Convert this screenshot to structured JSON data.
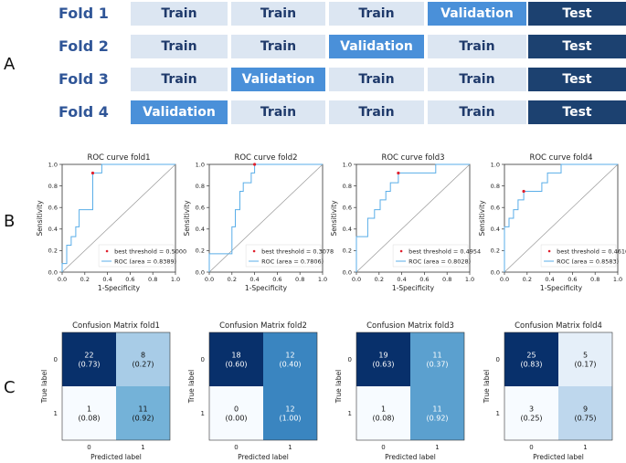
{
  "panel_letters": [
    "A",
    "B",
    "C"
  ],
  "folds": [
    {
      "label": "Fold 1",
      "cells": [
        "Train",
        "Train",
        "Train",
        "Validation",
        "Test"
      ]
    },
    {
      "label": "Fold 2",
      "cells": [
        "Train",
        "Train",
        "Validation",
        "Train",
        "Test"
      ]
    },
    {
      "label": "Fold 3",
      "cells": [
        "Train",
        "Validation",
        "Train",
        "Train",
        "Test"
      ]
    },
    {
      "label": "Fold 4",
      "cells": [
        "Validation",
        "Train",
        "Train",
        "Train",
        "Test"
      ]
    }
  ],
  "roc": {
    "xlabel": "1-Specificity",
    "ylabel": "Sensitivity",
    "ticks": [
      "0.0",
      "0.2",
      "0.4",
      "0.6",
      "0.8",
      "1.0"
    ],
    "curve_color": "#5aaee8",
    "diag_color": "#999999",
    "point_color": "#e0202e"
  },
  "confusion": {
    "xlabel": "Predicted label",
    "ylabel": "True label",
    "tick_labels": [
      "0",
      "1"
    ]
  },
  "chart_data": [
    {
      "type": "line",
      "title": "ROC curve fold1",
      "xlabel": "1-Specificity",
      "ylabel": "Sensitivity",
      "xlim": [
        0,
        1
      ],
      "ylim": [
        0,
        1
      ],
      "x": [
        0,
        0,
        0.04,
        0.04,
        0.08,
        0.08,
        0.12,
        0.12,
        0.15,
        0.15,
        0.27,
        0.27,
        0.35,
        0.35,
        0.5,
        0.5,
        1.0
      ],
      "y": [
        0,
        0.08,
        0.08,
        0.25,
        0.25,
        0.33,
        0.33,
        0.42,
        0.42,
        0.58,
        0.58,
        0.92,
        0.92,
        1.0,
        1.0,
        1.0,
        1.0
      ],
      "best_point": [
        0.27,
        0.92
      ],
      "legend": [
        "best threshold = 0.5000",
        "ROC (area = 0.8389)"
      ]
    },
    {
      "type": "line",
      "title": "ROC curve fold2",
      "xlabel": "1-Specificity",
      "ylabel": "Sensitivity",
      "xlim": [
        0,
        1
      ],
      "ylim": [
        0,
        1
      ],
      "x": [
        0,
        0,
        0.2,
        0.2,
        0.23,
        0.23,
        0.27,
        0.27,
        0.3,
        0.3,
        0.37,
        0.37,
        0.4,
        0.4,
        1.0
      ],
      "y": [
        0,
        0.17,
        0.17,
        0.42,
        0.42,
        0.58,
        0.58,
        0.75,
        0.75,
        0.83,
        0.83,
        0.92,
        0.92,
        1.0,
        1.0
      ],
      "best_point": [
        0.4,
        1.0
      ],
      "legend": [
        "best threshold = 0.3078",
        "ROC (area = 0.7806)"
      ]
    },
    {
      "type": "line",
      "title": "ROC curve fold3",
      "xlabel": "1-Specificity",
      "ylabel": "Sensitivity",
      "xlim": [
        0,
        1
      ],
      "ylim": [
        0,
        1
      ],
      "x": [
        0,
        0,
        0.1,
        0.1,
        0.16,
        0.16,
        0.21,
        0.21,
        0.26,
        0.26,
        0.3,
        0.3,
        0.37,
        0.37,
        0.7,
        0.7,
        1.0
      ],
      "y": [
        0,
        0.33,
        0.33,
        0.5,
        0.5,
        0.58,
        0.58,
        0.67,
        0.67,
        0.75,
        0.75,
        0.83,
        0.83,
        0.92,
        0.92,
        1.0,
        1.0
      ],
      "best_point": [
        0.37,
        0.92
      ],
      "legend": [
        "best threshold = 0.4954",
        "ROC (area = 0.8028)"
      ]
    },
    {
      "type": "line",
      "title": "ROC curve fold4",
      "xlabel": "1-Specificity",
      "ylabel": "Sensitivity",
      "xlim": [
        0,
        1
      ],
      "ylim": [
        0,
        1
      ],
      "x": [
        0,
        0,
        0.04,
        0.04,
        0.08,
        0.08,
        0.12,
        0.12,
        0.17,
        0.17,
        0.33,
        0.33,
        0.38,
        0.38,
        0.5,
        0.5,
        1.0
      ],
      "y": [
        0,
        0.42,
        0.42,
        0.5,
        0.5,
        0.58,
        0.58,
        0.67,
        0.67,
        0.75,
        0.75,
        0.83,
        0.83,
        0.92,
        0.92,
        1.0,
        1.0
      ],
      "best_point": [
        0.17,
        0.75
      ],
      "legend": [
        "best threshold = 0.4610",
        "ROC (area = 0.8583)"
      ]
    },
    {
      "type": "heatmap",
      "title": "Confusion Matrix fold1",
      "xlabel": "Predicted label",
      "ylabel": "True label",
      "categories": [
        "0",
        "1"
      ],
      "counts": [
        [
          22,
          8
        ],
        [
          1,
          11
        ]
      ],
      "labels": [
        [
          "22",
          "8"
        ],
        [
          "1",
          "11"
        ]
      ],
      "ratios": [
        [
          "(0.73)",
          "(0.27)"
        ],
        [
          "(0.08)",
          "(0.92)"
        ]
      ]
    },
    {
      "type": "heatmap",
      "title": "Confusion Matrix fold2",
      "xlabel": "Predicted label",
      "ylabel": "True label",
      "categories": [
        "0",
        "1"
      ],
      "counts": [
        [
          18,
          12
        ],
        [
          0,
          12
        ]
      ],
      "labels": [
        [
          "18",
          "12"
        ],
        [
          "0",
          "12"
        ]
      ],
      "ratios": [
        [
          "(0.60)",
          "(0.40)"
        ],
        [
          "(0.00)",
          "(1.00)"
        ]
      ]
    },
    {
      "type": "heatmap",
      "title": "Confusion Matrix fold3",
      "xlabel": "Predicted label",
      "ylabel": "True label",
      "categories": [
        "0",
        "1"
      ],
      "counts": [
        [
          19,
          11
        ],
        [
          1,
          11
        ]
      ],
      "labels": [
        [
          "19",
          "11"
        ],
        [
          "1",
          "11"
        ]
      ],
      "ratios": [
        [
          "(0.63)",
          "(0.37)"
        ],
        [
          "(0.08)",
          "(0.92)"
        ]
      ]
    },
    {
      "type": "heatmap",
      "title": "Confusion Matrix fold4",
      "xlabel": "Predicted label",
      "ylabel": "True label",
      "categories": [
        "0",
        "1"
      ],
      "counts": [
        [
          25,
          5
        ],
        [
          3,
          9
        ]
      ],
      "labels": [
        [
          "25",
          "5"
        ],
        [
          "3",
          "9"
        ]
      ],
      "ratios": [
        [
          "(0.83)",
          "(0.17)"
        ],
        [
          "(0.25)",
          "(0.75)"
        ]
      ]
    }
  ]
}
